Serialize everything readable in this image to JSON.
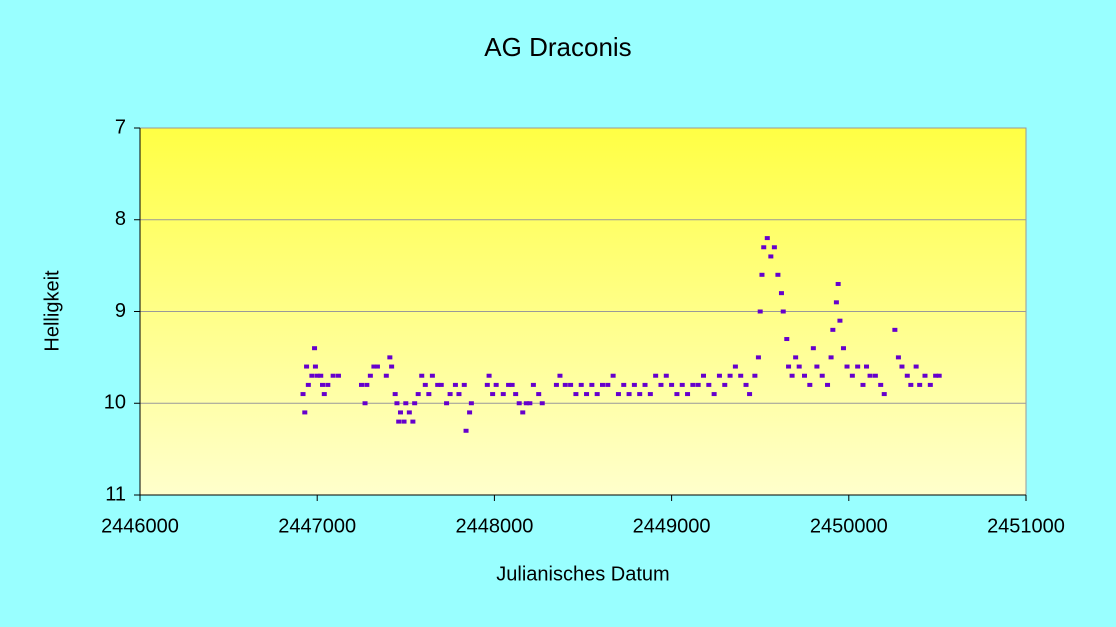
{
  "chart_data": {
    "type": "scatter",
    "title": "AG Draconis",
    "x_label": "Julianisches Datum",
    "y_label": "Helligkeit",
    "xlim": [
      2446000,
      2451000
    ],
    "xticks": [
      2446000,
      2447000,
      2448000,
      2449000,
      2450000,
      2451000
    ],
    "ylim": [
      7,
      11
    ],
    "yticks": [
      7,
      8,
      9,
      10,
      11
    ],
    "y_inverted": true,
    "grid": true,
    "color": "#6600cc",
    "x": [
      2446920,
      2446930,
      2446940,
      2446950,
      2446970,
      2446985,
      2446990,
      2447000,
      2447020,
      2447030,
      2447040,
      2447060,
      2447090,
      2447120,
      2447250,
      2447270,
      2447280,
      2447300,
      2447320,
      2447340,
      2447390,
      2447410,
      2447420,
      2447440,
      2447450,
      2447460,
      2447470,
      2447490,
      2447500,
      2447520,
      2447540,
      2447550,
      2447570,
      2447590,
      2447610,
      2447630,
      2447650,
      2447680,
      2447700,
      2447730,
      2447750,
      2447780,
      2447800,
      2447830,
      2447840,
      2447860,
      2447870,
      2447960,
      2447970,
      2447990,
      2448010,
      2448050,
      2448080,
      2448100,
      2448120,
      2448140,
      2448160,
      2448180,
      2448200,
      2448220,
      2448250,
      2448270,
      2448350,
      2448370,
      2448400,
      2448430,
      2448460,
      2448490,
      2448520,
      2448550,
      2448580,
      2448610,
      2448640,
      2448670,
      2448700,
      2448730,
      2448760,
      2448790,
      2448820,
      2448850,
      2448880,
      2448910,
      2448940,
      2448970,
      2449000,
      2449030,
      2449060,
      2449090,
      2449120,
      2449150,
      2449180,
      2449210,
      2449240,
      2449270,
      2449300,
      2449330,
      2449360,
      2449390,
      2449420,
      2449440,
      2449470,
      2449490,
      2449500,
      2449510,
      2449520,
      2449540,
      2449560,
      2449580,
      2449600,
      2449620,
      2449630,
      2449650,
      2449660,
      2449680,
      2449700,
      2449720,
      2449750,
      2449780,
      2449800,
      2449820,
      2449850,
      2449880,
      2449900,
      2449910,
      2449930,
      2449940,
      2449950,
      2449970,
      2449990,
      2450020,
      2450050,
      2450080,
      2450100,
      2450120,
      2450150,
      2450180,
      2450200,
      2450260,
      2450280,
      2450300,
      2450330,
      2450350,
      2450380,
      2450400,
      2450430,
      2450460,
      2450490,
      2450510
    ],
    "values": [
      9.9,
      10.1,
      9.6,
      9.8,
      9.7,
      9.4,
      9.6,
      9.7,
      9.7,
      9.8,
      9.9,
      9.8,
      9.7,
      9.7,
      9.8,
      10.0,
      9.8,
      9.7,
      9.6,
      9.6,
      9.7,
      9.5,
      9.6,
      9.9,
      10.0,
      10.2,
      10.1,
      10.2,
      10.0,
      10.1,
      10.2,
      10.0,
      9.9,
      9.7,
      9.8,
      9.9,
      9.7,
      9.8,
      9.8,
      10.0,
      9.9,
      9.8,
      9.9,
      9.8,
      10.3,
      10.1,
      10.0,
      9.8,
      9.7,
      9.9,
      9.8,
      9.9,
      9.8,
      9.8,
      9.9,
      10.0,
      10.1,
      10.0,
      10.0,
      9.8,
      9.9,
      10.0,
      9.8,
      9.7,
      9.8,
      9.8,
      9.9,
      9.8,
      9.9,
      9.8,
      9.9,
      9.8,
      9.8,
      9.7,
      9.9,
      9.8,
      9.9,
      9.8,
      9.9,
      9.8,
      9.9,
      9.7,
      9.8,
      9.7,
      9.8,
      9.9,
      9.8,
      9.9,
      9.8,
      9.8,
      9.7,
      9.8,
      9.9,
      9.7,
      9.8,
      9.7,
      9.6,
      9.7,
      9.8,
      9.9,
      9.7,
      9.5,
      9.0,
      8.6,
      8.3,
      8.2,
      8.4,
      8.3,
      8.6,
      8.8,
      9.0,
      9.3,
      9.6,
      9.7,
      9.5,
      9.6,
      9.7,
      9.8,
      9.4,
      9.6,
      9.7,
      9.8,
      9.5,
      9.2,
      8.9,
      8.7,
      9.1,
      9.4,
      9.6,
      9.7,
      9.6,
      9.8,
      9.6,
      9.7,
      9.7,
      9.8,
      9.9,
      9.2,
      9.5,
      9.6,
      9.7,
      9.8,
      9.6,
      9.8,
      9.7,
      9.8,
      9.7,
      9.7
    ]
  }
}
